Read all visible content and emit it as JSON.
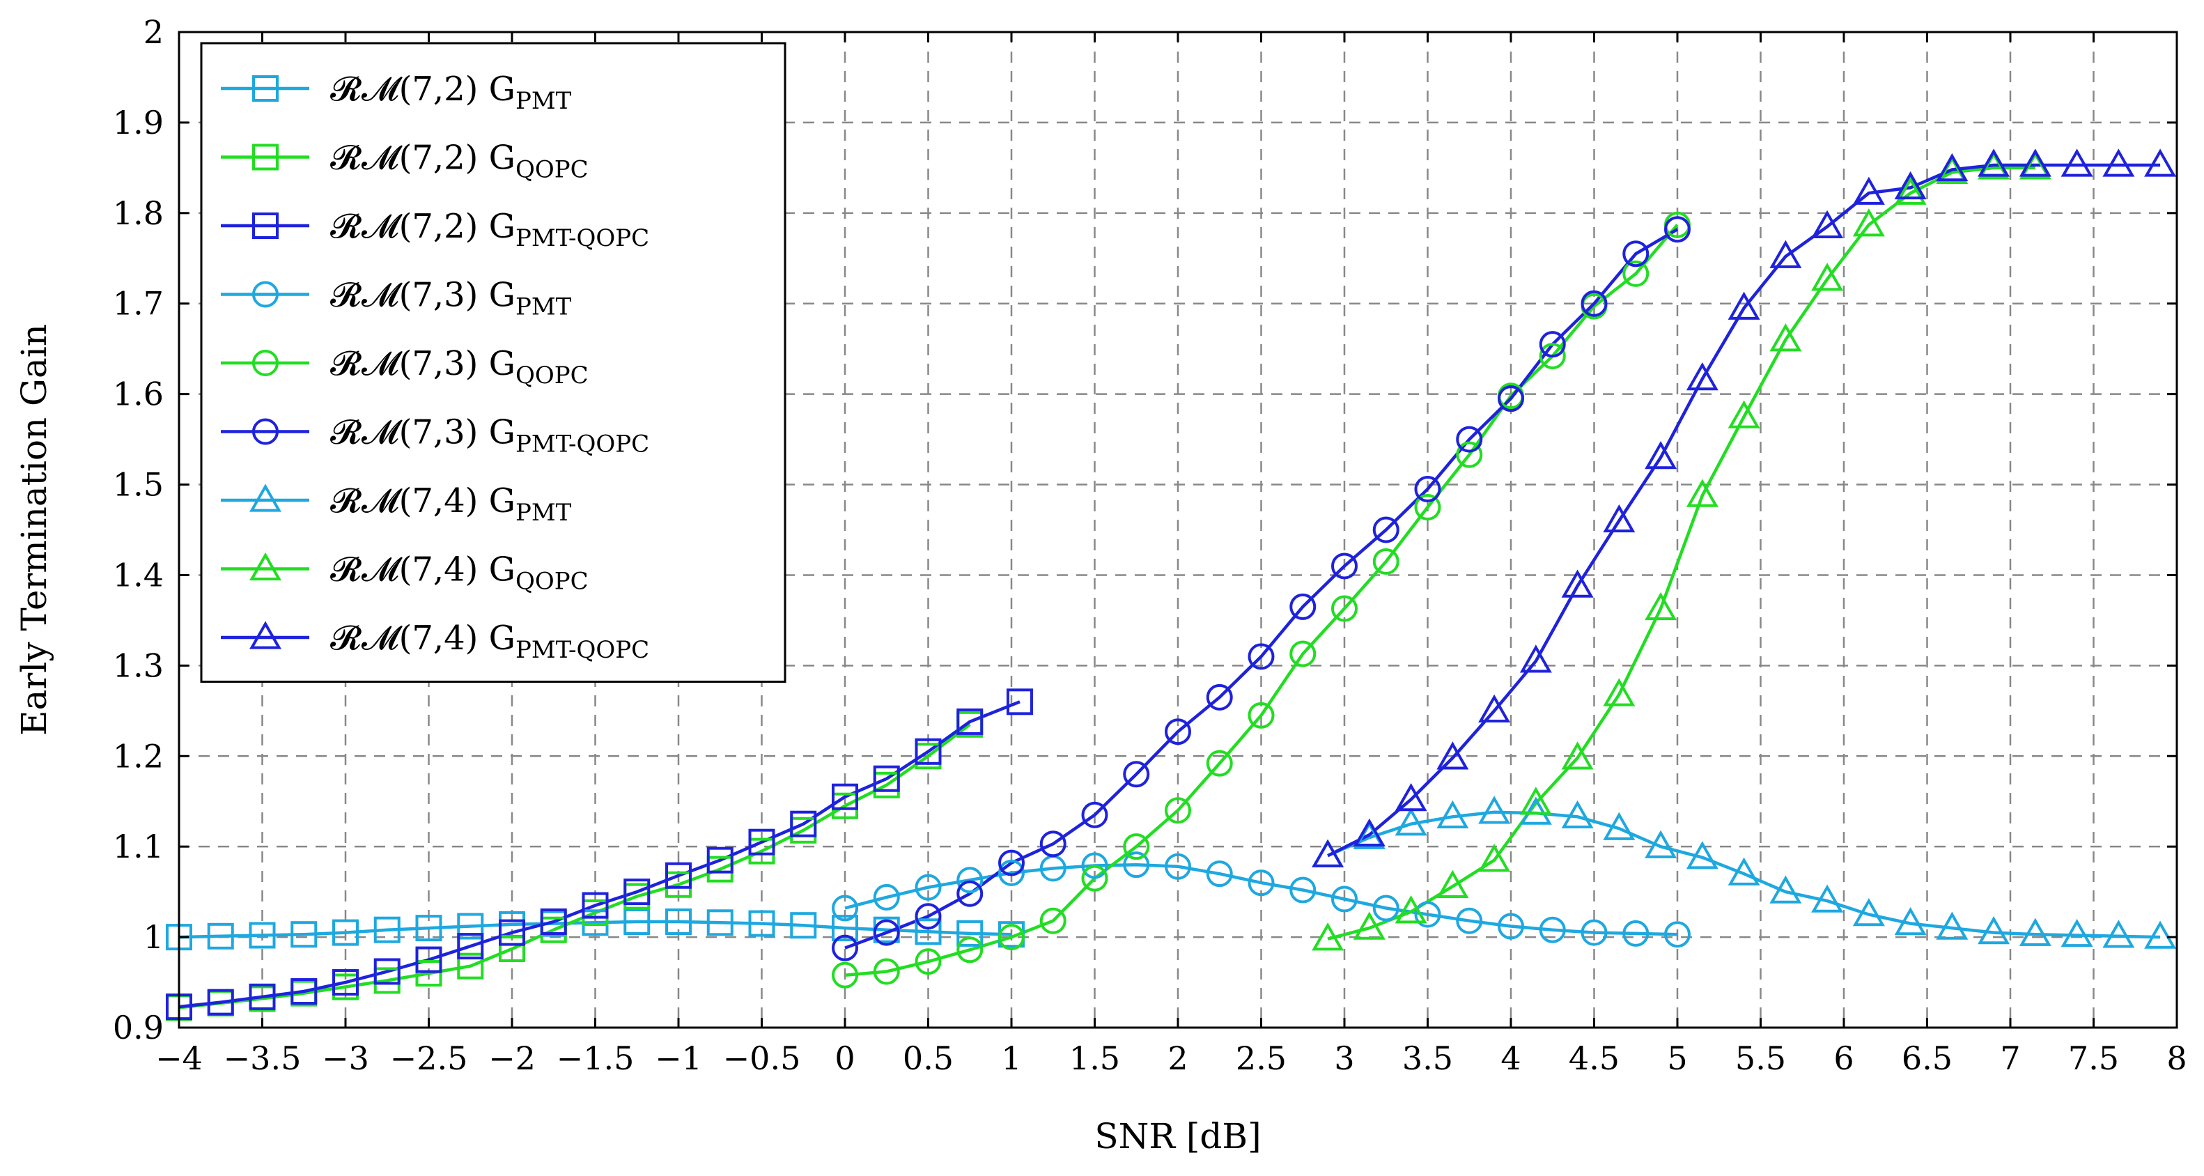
{
  "chart_data": {
    "type": "line",
    "title": "",
    "xlabel": "SNR [dB]",
    "ylabel": "Early Termination Gain",
    "xlim": [
      -4,
      8
    ],
    "ylim": [
      0.9,
      2
    ],
    "grid": true,
    "legend_position": "top-left",
    "x_ticks": [
      -4,
      -3.5,
      -3,
      -2.5,
      -2,
      -1.5,
      -1,
      -0.5,
      0,
      0.5,
      1,
      1.5,
      2,
      2.5,
      3,
      3.5,
      4,
      4.5,
      5,
      5.5,
      6,
      6.5,
      7,
      7.5,
      8
    ],
    "x_tick_labels": [
      "−4",
      "−3.5",
      "−3",
      "−2.5",
      "−2",
      "−1.5",
      "−1",
      "−0.5",
      "0",
      "0.5",
      "1",
      "1.5",
      "2",
      "2.5",
      "3",
      "3.5",
      "4",
      "4.5",
      "5",
      "5.5",
      "6",
      "6.5",
      "7",
      "7.5",
      "8"
    ],
    "y_ticks": [
      0.9,
      1,
      1.1,
      1.2,
      1.3,
      1.4,
      1.5,
      1.6,
      1.7,
      1.8,
      1.9,
      2
    ],
    "y_tick_labels": [
      "0.9",
      "1",
      "1.1",
      "1.2",
      "1.3",
      "1.4",
      "1.5",
      "1.6",
      "1.7",
      "1.8",
      "1.9",
      "2"
    ],
    "series": [
      {
        "name": "RM(7,2) G_PMT",
        "label_main": "𝓡𝓜(7,2) G",
        "label_sub": "PMT",
        "color": "#1EA8E0",
        "marker": "square",
        "x": [
          -4,
          -3.75,
          -3.5,
          -3.25,
          -3,
          -2.75,
          -2.5,
          -2.25,
          -2,
          -1.75,
          -1.5,
          -1.25,
          -1,
          -0.75,
          -0.5,
          -0.25,
          0,
          0.25,
          0.5,
          0.75,
          1
        ],
        "y": [
          1.0,
          1.001,
          1.002,
          1.003,
          1.005,
          1.008,
          1.01,
          1.012,
          1.014,
          1.015,
          1.016,
          1.017,
          1.017,
          1.016,
          1.015,
          1.013,
          1.01,
          1.008,
          1.006,
          1.004,
          1.003
        ]
      },
      {
        "name": "RM(7,2) G_QOPC",
        "label_main": "𝓡𝓜(7,2) G",
        "label_sub": "QOPC",
        "color": "#22DD22",
        "marker": "square",
        "x": [
          -4,
          -3.75,
          -3.5,
          -3.25,
          -3,
          -2.75,
          -2.5,
          -2.25,
          -2,
          -1.75,
          -1.5,
          -1.25,
          -1,
          -0.75,
          -0.5,
          -0.25,
          0,
          0.25,
          0.5,
          0.75
        ],
        "y": [
          0.922,
          0.927,
          0.932,
          0.938,
          0.945,
          0.952,
          0.96,
          0.968,
          0.987,
          1.008,
          1.027,
          1.045,
          1.058,
          1.075,
          1.095,
          1.118,
          1.145,
          1.168,
          1.2,
          1.235
        ]
      },
      {
        "name": "RM(7,2) G_PMT-QOPC",
        "label_main": "𝓡𝓜(7,2) G",
        "label_sub": "PMT-QOPC",
        "color": "#1E22DD",
        "marker": "square",
        "x": [
          -4,
          -3.75,
          -3.5,
          -3.25,
          -3,
          -2.75,
          -2.5,
          -2.25,
          -2,
          -1.75,
          -1.5,
          -1.25,
          -1,
          -0.75,
          -0.5,
          -0.25,
          0,
          0.25,
          0.5,
          0.75,
          1.05
        ],
        "y": [
          0.923,
          0.928,
          0.934,
          0.94,
          0.95,
          0.962,
          0.975,
          0.99,
          1.005,
          1.017,
          1.035,
          1.05,
          1.068,
          1.085,
          1.105,
          1.125,
          1.155,
          1.175,
          1.205,
          1.238,
          1.26
        ]
      },
      {
        "name": "RM(7,3) G_PMT",
        "label_main": "𝓡𝓜(7,3) G",
        "label_sub": "PMT",
        "color": "#1EA8E0",
        "marker": "circle",
        "x": [
          0,
          0.25,
          0.5,
          0.75,
          1,
          1.25,
          1.5,
          1.75,
          2,
          2.25,
          2.5,
          2.75,
          3,
          3.25,
          3.5,
          3.75,
          4,
          4.25,
          4.5,
          4.75,
          5
        ],
        "y": [
          1.032,
          1.044,
          1.055,
          1.063,
          1.071,
          1.076,
          1.079,
          1.08,
          1.078,
          1.07,
          1.06,
          1.052,
          1.042,
          1.032,
          1.025,
          1.018,
          1.012,
          1.008,
          1.005,
          1.004,
          1.003
        ]
      },
      {
        "name": "RM(7,3) G_QOPC",
        "label_main": "𝓡𝓜(7,3) G",
        "label_sub": "QOPC",
        "color": "#22DD22",
        "marker": "circle",
        "x": [
          0,
          0.25,
          0.5,
          0.75,
          1,
          1.25,
          1.5,
          1.75,
          2,
          2.25,
          2.5,
          2.75,
          3,
          3.25,
          3.5,
          3.75,
          4,
          4.25,
          4.5,
          4.75,
          5
        ],
        "y": [
          0.958,
          0.962,
          0.973,
          0.986,
          1.0,
          1.018,
          1.065,
          1.1,
          1.14,
          1.192,
          1.245,
          1.313,
          1.363,
          1.415,
          1.475,
          1.533,
          1.598,
          1.642,
          1.697,
          1.733,
          1.787
        ]
      },
      {
        "name": "RM(7,3) G_PMT-QOPC",
        "label_main": "𝓡𝓜(7,3) G",
        "label_sub": "PMT-QOPC",
        "color": "#1E22DD",
        "marker": "circle",
        "x": [
          0,
          0.25,
          0.5,
          0.75,
          1,
          1.25,
          1.5,
          1.75,
          2,
          2.25,
          2.5,
          2.75,
          3,
          3.25,
          3.5,
          3.75,
          4,
          4.25,
          4.5,
          4.75,
          5
        ],
        "y": [
          0.988,
          1.005,
          1.023,
          1.048,
          1.082,
          1.103,
          1.135,
          1.18,
          1.227,
          1.265,
          1.31,
          1.365,
          1.41,
          1.45,
          1.495,
          1.55,
          1.595,
          1.655,
          1.7,
          1.755,
          1.782
        ]
      },
      {
        "name": "RM(7,4) G_PMT",
        "label_main": "𝓡𝓜(7,4) G",
        "label_sub": "PMT",
        "color": "#1EA8E0",
        "marker": "triangle",
        "x": [
          2.9,
          3.15,
          3.4,
          3.65,
          3.9,
          4.15,
          4.4,
          4.65,
          4.9,
          5.15,
          5.4,
          5.65,
          5.9,
          6.15,
          6.4,
          6.65,
          6.9,
          7.15,
          7.4,
          7.65,
          7.9
        ],
        "y": [
          1.09,
          1.11,
          1.125,
          1.133,
          1.138,
          1.137,
          1.133,
          1.12,
          1.1,
          1.088,
          1.07,
          1.05,
          1.04,
          1.025,
          1.015,
          1.01,
          1.005,
          1.003,
          1.002,
          1.001,
          1.0
        ]
      },
      {
        "name": "RM(7,4) G_QOPC",
        "label_main": "𝓡𝓜(7,4) G",
        "label_sub": "QOPC",
        "color": "#22DD22",
        "marker": "triangle",
        "x": [
          2.9,
          3.15,
          3.4,
          3.65,
          3.9,
          4.15,
          4.4,
          4.65,
          4.9,
          5.15,
          5.4,
          5.65,
          5.9,
          6.15,
          6.4,
          6.65,
          6.9,
          7.15
        ],
        "y": [
          0.998,
          1.01,
          1.028,
          1.056,
          1.085,
          1.148,
          1.198,
          1.268,
          1.363,
          1.488,
          1.575,
          1.66,
          1.727,
          1.787,
          1.822,
          1.845,
          1.85,
          1.85
        ]
      },
      {
        "name": "RM(7,4) G_PMT-QOPC",
        "label_main": "𝓡𝓜(7,4) G",
        "label_sub": "PMT-QOPC",
        "color": "#1E22DD",
        "marker": "triangle",
        "x": [
          2.9,
          3.15,
          3.4,
          3.65,
          3.9,
          4.15,
          4.4,
          4.65,
          4.9,
          5.15,
          5.4,
          5.65,
          5.9,
          6.15,
          6.4,
          6.65,
          6.9,
          7.15,
          7.4,
          7.65,
          7.9
        ],
        "y": [
          1.09,
          1.113,
          1.152,
          1.198,
          1.25,
          1.305,
          1.388,
          1.46,
          1.53,
          1.617,
          1.695,
          1.752,
          1.785,
          1.822,
          1.828,
          1.848,
          1.853,
          1.853,
          1.853,
          1.853,
          1.853
        ]
      }
    ]
  }
}
